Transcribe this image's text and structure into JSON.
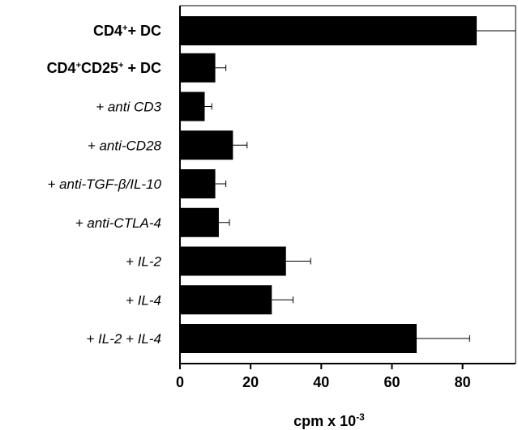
{
  "chart_data": {
    "type": "bar",
    "orientation": "horizontal",
    "categories": [
      "CD4+ + DC",
      "CD4+CD25+ + DC",
      "+ anti CD3",
      "+ anti-CD28",
      "+ anti-TGF-β/IL-10",
      "+ anti-CTLA-4",
      "+ IL-2",
      "+ IL-4",
      "+ IL-2 + IL-4"
    ],
    "category_labels": [
      {
        "parts": [
          {
            "t": "CD4"
          },
          {
            "t": "+",
            "sup": true
          },
          {
            "t": "+ DC"
          }
        ],
        "style": "bold"
      },
      {
        "parts": [
          {
            "t": "CD4"
          },
          {
            "t": "+",
            "sup": true
          },
          {
            "t": "CD25"
          },
          {
            "t": "+",
            "sup": true
          },
          {
            "t": " + DC"
          }
        ],
        "style": "bold"
      },
      {
        "parts": [
          {
            "t": "+ anti CD3"
          }
        ],
        "style": "italic"
      },
      {
        "parts": [
          {
            "t": "+ anti-CD28"
          }
        ],
        "style": "italic"
      },
      {
        "parts": [
          {
            "t": "+ anti-TGF-β/IL-10"
          }
        ],
        "style": "italic"
      },
      {
        "parts": [
          {
            "t": "+ anti-CTLA-4"
          }
        ],
        "style": "italic"
      },
      {
        "parts": [
          {
            "t": "+ IL-2"
          }
        ],
        "style": "italic"
      },
      {
        "parts": [
          {
            "t": "+ IL-4"
          }
        ],
        "style": "italic"
      },
      {
        "parts": [
          {
            "t": "+ IL-2 + IL-4"
          }
        ],
        "style": "italic"
      }
    ],
    "values": [
      84,
      10,
      7,
      15,
      10,
      11,
      30,
      26,
      67
    ],
    "errors": [
      13,
      3,
      2,
      4,
      3,
      3,
      7,
      6,
      15
    ],
    "xlim": [
      0,
      95
    ],
    "xticks": [
      0,
      20,
      40,
      60,
      80
    ],
    "xlabel": "cpm x 10",
    "xlabel_exponent": "-3",
    "bar_color": "#000000",
    "grid": false
  }
}
